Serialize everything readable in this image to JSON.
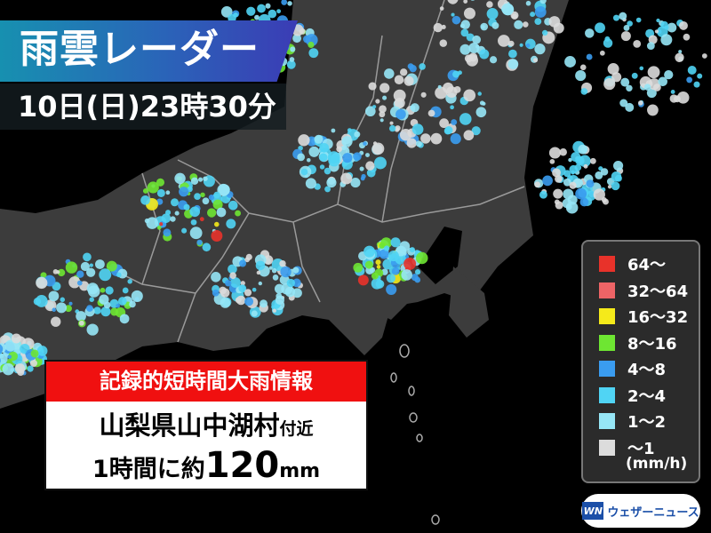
{
  "header": {
    "title": "雨雲レーダー",
    "datetime": "10日(日)23時30分",
    "banner_colors": [
      "#1790b0",
      "#3b3cb5"
    ]
  },
  "alert": {
    "heading": "記録的短時間大雨情報",
    "location": "山梨県山中湖村",
    "location_suffix": "付近",
    "amount_prefix": "1時間に約",
    "amount_value": "120",
    "amount_unit": "mm",
    "heading_color": "#f01010"
  },
  "legend": {
    "items": [
      {
        "label": "64〜",
        "color": "#e8322a"
      },
      {
        "label": "32〜64",
        "color": "#ee6466"
      },
      {
        "label": "16〜32",
        "color": "#f5ea1a"
      },
      {
        "label": "8〜16",
        "color": "#6ee632"
      },
      {
        "label": "4〜8",
        "color": "#3a9cf0"
      },
      {
        "label": "2〜4",
        "color": "#50d4f4"
      },
      {
        "label": "1〜2",
        "color": "#96e6f6"
      },
      {
        "label": "〜1",
        "color": "#dcdcdc"
      }
    ],
    "unit": "(mm/h)"
  },
  "logo": {
    "mark": "WN",
    "name": "ウェザーニュース"
  },
  "map": {
    "land_color": "#3c3c3c",
    "sea_color": "#000000",
    "border_color": "#9a9a9a"
  }
}
